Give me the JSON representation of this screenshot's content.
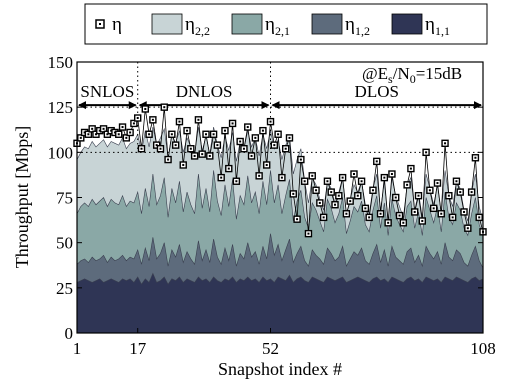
{
  "chart_data": {
    "type": "area",
    "xlabel": "Snapshot index #",
    "ylabel": "Throughput [Mbps]",
    "xlim": [
      1,
      108
    ],
    "ylim": [
      0,
      150
    ],
    "xticks": [
      1,
      17,
      52,
      108
    ],
    "yticks": [
      0,
      25,
      50,
      75,
      100,
      125,
      150
    ],
    "grid": "dotted lines at y=100 and y=125 only",
    "legend_placement": "top",
    "regions": [
      {
        "label": "SNLOS",
        "from": 1,
        "to": 17
      },
      {
        "label": "DNLOS",
        "from": 17,
        "to": 52
      },
      {
        "label": "DLOS",
        "from": 52,
        "to": 108
      }
    ],
    "annotation": {
      "prefix": "@E",
      "sub1": "s",
      "mid": "/N",
      "sub2": "0",
      "suffix": "=15dB"
    },
    "legend": [
      {
        "sym": "η",
        "sub": "",
        "color": "#ffffff",
        "marker": true
      },
      {
        "sym": "η",
        "sub": "2,2",
        "color": "#c8d4d6",
        "marker": false
      },
      {
        "sym": "η",
        "sub": "2,1",
        "color": "#8aa8a6",
        "marker": false
      },
      {
        "sym": "η",
        "sub": "1,2",
        "color": "#5d6b7c",
        "marker": false
      },
      {
        "sym": "η",
        "sub": "1,1",
        "color": "#2f3555",
        "marker": false
      }
    ],
    "series": [
      {
        "key": "eta_1_1",
        "label_sub": "1,1",
        "color": "#2f3555",
        "values": [
          28,
          29,
          30,
          29,
          28,
          29,
          30,
          28,
          29,
          30,
          29,
          28,
          30,
          29,
          30,
          28,
          31,
          27,
          30,
          28,
          33,
          28,
          29,
          31,
          27,
          30,
          29,
          31,
          28,
          30,
          29,
          28,
          31,
          29,
          30,
          28,
          31,
          29,
          28,
          30,
          29,
          31,
          28,
          30,
          29,
          31,
          29,
          30,
          28,
          31,
          29,
          30,
          28,
          31,
          30,
          29,
          32,
          28,
          30,
          31,
          29,
          28,
          31,
          30,
          29,
          28,
          31,
          30,
          29,
          30,
          31,
          28,
          29,
          30,
          31,
          30,
          29,
          28,
          30,
          31,
          29,
          30,
          28,
          31,
          30,
          29,
          28,
          30,
          31,
          29,
          30,
          28,
          31,
          30,
          29,
          30,
          28,
          31,
          30,
          29,
          31,
          30,
          29,
          28,
          30,
          31,
          29,
          30
        ]
      },
      {
        "key": "eta_1_2",
        "label_sub": "1,2",
        "color": "#5d6b7c",
        "values": [
          38,
          40,
          41,
          39,
          42,
          40,
          41,
          43,
          39,
          42,
          40,
          41,
          43,
          40,
          42,
          41,
          46,
          38,
          47,
          40,
          53,
          41,
          44,
          50,
          37,
          46,
          42,
          49,
          39,
          45,
          41,
          38,
          51,
          40,
          46,
          39,
          52,
          42,
          38,
          47,
          40,
          49,
          37,
          44,
          41,
          50,
          42,
          45,
          38,
          48,
          41,
          55,
          43,
          49,
          40,
          46,
          52,
          39,
          44,
          48,
          40,
          37,
          46,
          43,
          41,
          38,
          47,
          44,
          40,
          42,
          48,
          37,
          41,
          45,
          43,
          47,
          40,
          38,
          44,
          49,
          39,
          46,
          37,
          48,
          42,
          40,
          38,
          45,
          47,
          39,
          43,
          37,
          48,
          44,
          41,
          45,
          38,
          50,
          42,
          40,
          46,
          44,
          39,
          37,
          43,
          48,
          40,
          36
        ]
      },
      {
        "key": "eta_2_1",
        "label_sub": "2,1",
        "color": "#8aa8a6",
        "values": [
          66,
          70,
          72,
          70,
          74,
          71,
          73,
          75,
          70,
          74,
          72,
          71,
          76,
          70,
          73,
          72,
          78,
          66,
          80,
          70,
          88,
          71,
          76,
          86,
          64,
          80,
          72,
          84,
          67,
          78,
          71,
          66,
          88,
          69,
          80,
          67,
          90,
          73,
          65,
          82,
          70,
          85,
          63,
          76,
          71,
          87,
          72,
          78,
          66,
          84,
          71,
          90,
          72,
          82,
          66,
          76,
          85,
          62,
          73,
          79,
          64,
          58,
          72,
          68,
          62,
          56,
          74,
          69,
          61,
          66,
          75,
          55,
          62,
          70,
          67,
          73,
          60,
          56,
          68,
          76,
          58,
          72,
          54,
          74,
          65,
          60,
          56,
          70,
          73,
          58,
          67,
          54,
          75,
          68,
          61,
          70,
          56,
          78,
          64,
          60,
          72,
          68,
          58,
          54,
          66,
          75,
          60,
          54
        ]
      },
      {
        "key": "eta_2_2",
        "label_sub": "2,2",
        "color": "#c8d4d6",
        "values": [
          96,
          100,
          103,
          102,
          106,
          103,
          105,
          107,
          103,
          106,
          105,
          104,
          108,
          102,
          105,
          106,
          110,
          100,
          112,
          103,
          114,
          104,
          108,
          113,
          97,
          110,
          105,
          112,
          100,
          108,
          103,
          99,
          114,
          101,
          109,
          99,
          114,
          104,
          97,
          109,
          101,
          111,
          95,
          106,
          102,
          112,
          103,
          108,
          98,
          110,
          102,
          112,
          102,
          107,
          96,
          104,
          109,
          88,
          96,
          102,
          84,
          72,
          86,
          82,
          74,
          68,
          84,
          80,
          72,
          78,
          86,
          66,
          74,
          82,
          78,
          84,
          71,
          66,
          80,
          88,
          68,
          84,
          62,
          86,
          76,
          70,
          64,
          82,
          86,
          68,
          78,
          64,
          88,
          80,
          71,
          82,
          66,
          90,
          76,
          70,
          84,
          80,
          68,
          62,
          78,
          88,
          70,
          62
        ]
      },
      {
        "key": "eta",
        "label_sub": "",
        "color": "#ffffff",
        "values": [
          105,
          108,
          111,
          110,
          113,
          110,
          112,
          113,
          110,
          112,
          111,
          110,
          114,
          108,
          111,
          116,
          119,
          102,
          124,
          110,
          118,
          104,
          102,
          125,
          96,
          110,
          104,
          117,
          93,
          112,
          102,
          98,
          118,
          99,
          110,
          98,
          110,
          104,
          86,
          112,
          91,
          116,
          84,
          106,
          102,
          114,
          98,
          108,
          87,
          112,
          93,
          117,
          104,
          110,
          86,
          102,
          108,
          77,
          63,
          96,
          84,
          55,
          87,
          79,
          72,
          64,
          84,
          78,
          71,
          76,
          86,
          66,
          73,
          88,
          76,
          84,
          69,
          64,
          79,
          95,
          66,
          86,
          61,
          88,
          75,
          65,
          61,
          82,
          91,
          67,
          76,
          62,
          100,
          79,
          69,
          83,
          66,
          105,
          76,
          64,
          84,
          78,
          67,
          58,
          78,
          97,
          64,
          56
        ]
      }
    ]
  }
}
